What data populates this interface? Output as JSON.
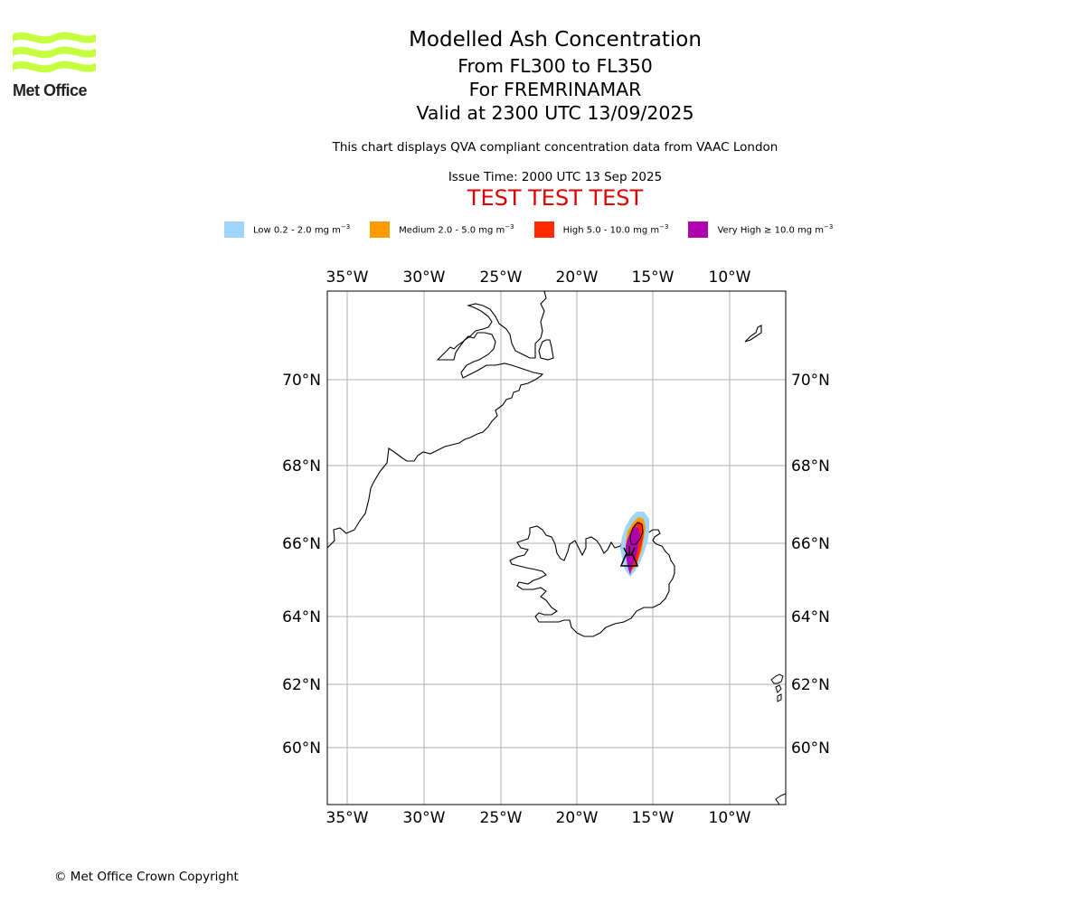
{
  "logo": {
    "text": "Met Office"
  },
  "title": {
    "line1": "Modelled Ash Concentration",
    "line2": "From FL300 to FL350",
    "line3": "For FREMRINAMAR",
    "line4": "Valid at 2300 UTC 13/09/2025"
  },
  "note": "This chart displays QVA compliant concentration data from VAAC London",
  "issue_time": "Issue Time: 2000 UTC 13 Sep 2025",
  "test_banner": "TEST TEST TEST",
  "legend": [
    {
      "label": "Low 0.2 - 2.0 mg m",
      "sup": "−3",
      "color": "#a0d4fa"
    },
    {
      "label": "Medium 2.0 - 5.0 mg m",
      "sup": "−3",
      "color": "#ff9a00"
    },
    {
      "label": "High 5.0 - 10.0 mg m",
      "sup": "−3",
      "color": "#ff2a00"
    },
    {
      "label": "Very High ≥ 10.0 mg m",
      "sup": "−3",
      "color": "#b000b0"
    }
  ],
  "map": {
    "lon_labels_top": [
      "35°W",
      "30°W",
      "25°W",
      "20°W",
      "15°W",
      "10°W"
    ],
    "lon_labels_bottom": [
      "35°W",
      "30°W",
      "25°W",
      "20°W",
      "15°W",
      "10°W"
    ],
    "lat_labels_left": [
      "70°N",
      "68°N",
      "66°N",
      "64°N",
      "62°N",
      "60°N"
    ],
    "lat_labels_right": [
      "70°N",
      "68°N",
      "66°N",
      "64°N",
      "62°N",
      "60°N"
    ],
    "colors": {
      "grid": "#b0b0b0",
      "coast": "#000000",
      "frame": "#000000"
    },
    "volcano_marker": "volcano-icon"
  },
  "footer": "© Met Office Crown Copyright"
}
